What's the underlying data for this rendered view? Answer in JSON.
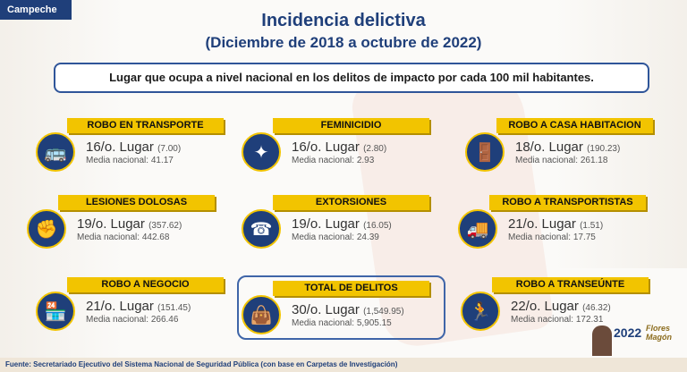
{
  "state_tab": "Campeche",
  "title": "Incidencia delictiva",
  "subtitle": "(Diciembre de 2018 a octubre de 2022)",
  "banner": "Lugar que ocupa a nivel nacional en los delitos de impacto por cada 100 mil habitantes.",
  "cards": [
    {
      "label": "ROBO EN TRANSPORTE",
      "rank": "16/o. Lugar",
      "value": "(7.00)",
      "media": "Media nacional: 41.17",
      "icon": "bus-icon"
    },
    {
      "label": "FEMINICIDIO",
      "rank": "16/o. Lugar",
      "value": "(2.80)",
      "media": "Media nacional: 2.93",
      "icon": "victim-icon"
    },
    {
      "label": "ROBO A CASA HABITACION",
      "rank": "18/o. Lugar",
      "value": "(190.23)",
      "media": "Media nacional: 261.18",
      "icon": "house-burglar-icon"
    },
    {
      "label": "LESIONES DOLOSAS",
      "rank": "19/o. Lugar",
      "value": "(357.62)",
      "media": "Media nacional: 442.68",
      "icon": "assault-icon"
    },
    {
      "label": "EXTORSIONES",
      "rank": "19/o. Lugar",
      "value": "(16.05)",
      "media": "Media nacional: 24.39",
      "icon": "extortion-icon"
    },
    {
      "label": "ROBO A TRANSPORTISTAS",
      "rank": "21/o. Lugar",
      "value": "(1.51)",
      "media": "Media nacional: 17.75",
      "icon": "truck-icon"
    },
    {
      "label": "ROBO A NEGOCIO",
      "rank": "21/o. Lugar",
      "value": "(151.45)",
      "media": "Media nacional: 266.46",
      "icon": "shop-robbery-icon"
    },
    {
      "label": "TOTAL DE DELITOS",
      "rank": "30/o. Lugar",
      "value": "(1,549.95)",
      "media": "Media nacional: 5,905.15",
      "icon": "thief-bag-icon"
    },
    {
      "label": "ROBO A TRANSEÚNTE",
      "rank": "22/o. Lugar",
      "value": "(46.32)",
      "media": "Media nacional: 172.31",
      "icon": "pedestrian-robbery-icon"
    }
  ],
  "footer": "Fuente: Secretariado Ejecutivo del Sistema Nacional de Seguridad Pública (con base en Carpetas de Investigación)",
  "logo": {
    "year": "2022",
    "name": "Flores Magón"
  }
}
